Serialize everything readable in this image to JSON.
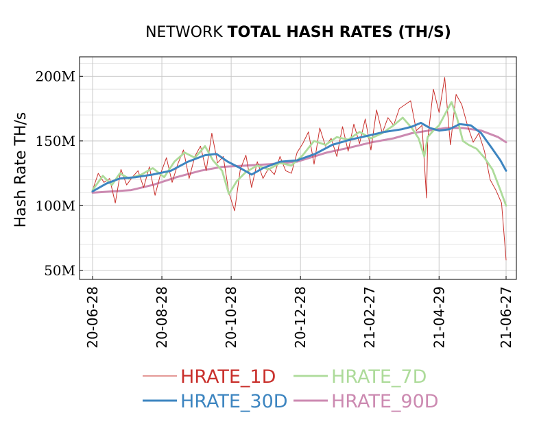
{
  "chart_data": {
    "type": "line",
    "title": {
      "prefix": "NETWORK ",
      "bold": "TOTAL HASH RATES (TH/S)"
    },
    "ylabel": "Hash Rate TH/s",
    "xlabel": "",
    "x_range": [
      "2020-06-28",
      "2021-06-27"
    ],
    "y_range": [
      43000000,
      215000000
    ],
    "y_ticks": [
      {
        "value": 50000000,
        "label": "50M"
      },
      {
        "value": 100000000,
        "label": "100M"
      },
      {
        "value": 150000000,
        "label": "150M"
      },
      {
        "value": 200000000,
        "label": "200M"
      }
    ],
    "x_ticks": [
      {
        "date": "2020-06-28",
        "label": "20-06-28"
      },
      {
        "date": "2020-08-28",
        "label": "20-08-28"
      },
      {
        "date": "2020-10-28",
        "label": "20-10-28"
      },
      {
        "date": "2020-12-28",
        "label": "20-12-28"
      },
      {
        "date": "2021-02-27",
        "label": "21-02-27"
      },
      {
        "date": "2021-04-29",
        "label": "21-04-29"
      },
      {
        "date": "2021-06-27",
        "label": "21-06-27"
      }
    ],
    "grid": true,
    "minor_grid": true,
    "legend_position": "bottom",
    "series": [
      {
        "name": "HRATE_1D",
        "color": "#c9302c",
        "x": [
          "2020-06-28",
          "2020-07-03",
          "2020-07-08",
          "2020-07-13",
          "2020-07-18",
          "2020-07-23",
          "2020-07-28",
          "2020-08-02",
          "2020-08-07",
          "2020-08-12",
          "2020-08-17",
          "2020-08-22",
          "2020-08-27",
          "2020-09-01",
          "2020-09-06",
          "2020-09-11",
          "2020-09-16",
          "2020-09-21",
          "2020-09-26",
          "2020-10-01",
          "2020-10-06",
          "2020-10-11",
          "2020-10-16",
          "2020-10-21",
          "2020-10-26",
          "2020-10-31",
          "2020-11-05",
          "2020-11-10",
          "2020-11-15",
          "2020-11-20",
          "2020-11-25",
          "2020-11-30",
          "2020-12-05",
          "2020-12-10",
          "2020-12-15",
          "2020-12-20",
          "2020-12-25",
          "2020-12-30",
          "2021-01-04",
          "2021-01-09",
          "2021-01-14",
          "2021-01-19",
          "2021-01-24",
          "2021-01-29",
          "2021-02-03",
          "2021-02-08",
          "2021-02-13",
          "2021-02-18",
          "2021-02-23",
          "2021-02-28",
          "2021-03-05",
          "2021-03-10",
          "2021-03-15",
          "2021-03-20",
          "2021-03-25",
          "2021-03-30",
          "2021-04-04",
          "2021-04-09",
          "2021-04-14",
          "2021-04-18",
          "2021-04-19",
          "2021-04-24",
          "2021-04-29",
          "2021-05-04",
          "2021-05-09",
          "2021-05-14",
          "2021-05-19",
          "2021-05-24",
          "2021-05-29",
          "2021-06-03",
          "2021-06-08",
          "2021-06-13",
          "2021-06-18",
          "2021-06-23",
          "2021-06-27"
        ],
        "values": [
          112,
          125,
          118,
          121,
          102,
          128,
          116,
          122,
          127,
          114,
          130,
          108,
          125,
          137,
          118,
          132,
          143,
          121,
          138,
          146,
          127,
          156,
          133,
          138,
          110,
          96,
          128,
          139,
          114,
          134,
          121,
          129,
          124,
          138,
          127,
          125,
          141,
          148,
          157,
          132,
          160,
          146,
          152,
          138,
          161,
          142,
          163,
          148,
          167,
          143,
          174,
          156,
          168,
          162,
          175,
          178,
          181,
          158,
          162,
          106,
          151,
          190,
          172,
          199,
          147,
          186,
          178,
          162,
          149,
          156,
          142,
          120,
          112,
          102,
          58
        ]
      },
      {
        "name": "HRATE_7D",
        "color": "#addb9a",
        "x": [
          "2020-06-28",
          "2020-07-07",
          "2020-07-15",
          "2020-07-22",
          "2020-07-30",
          "2020-08-10",
          "2020-08-20",
          "2020-08-30",
          "2020-09-08",
          "2020-09-17",
          "2020-09-26",
          "2020-10-05",
          "2020-10-12",
          "2020-10-20",
          "2020-10-26",
          "2020-11-02",
          "2020-11-10",
          "2020-11-20",
          "2020-11-30",
          "2020-12-10",
          "2020-12-20",
          "2020-12-30",
          "2021-01-09",
          "2021-01-19",
          "2021-01-29",
          "2021-02-08",
          "2021-02-18",
          "2021-02-28",
          "2021-03-10",
          "2021-03-20",
          "2021-03-28",
          "2021-04-05",
          "2021-04-11",
          "2021-04-16",
          "2021-04-19",
          "2021-04-24",
          "2021-04-29",
          "2021-05-05",
          "2021-05-10",
          "2021-05-15",
          "2021-05-20",
          "2021-05-25",
          "2021-06-01",
          "2021-06-08",
          "2021-06-15",
          "2021-06-22",
          "2021-06-27"
        ],
        "values": [
          112,
          123,
          116,
          125,
          121,
          124,
          129,
          122,
          134,
          141,
          137,
          146,
          135,
          127,
          109,
          119,
          126,
          131,
          128,
          133,
          131,
          139,
          150,
          147,
          153,
          151,
          157,
          152,
          156,
          162,
          168,
          160,
          152,
          138,
          153,
          158,
          162,
          172,
          180,
          167,
          150,
          147,
          144,
          137,
          128,
          112,
          100
        ]
      },
      {
        "name": "HRATE_30D",
        "color": "#3d85c0",
        "x": [
          "2020-06-28",
          "2020-07-10",
          "2020-07-22",
          "2020-08-05",
          "2020-08-20",
          "2020-09-05",
          "2020-09-20",
          "2020-10-05",
          "2020-10-15",
          "2020-10-25",
          "2020-11-05",
          "2020-11-15",
          "2020-11-25",
          "2020-12-10",
          "2020-12-25",
          "2021-01-10",
          "2021-01-25",
          "2021-02-10",
          "2021-02-25",
          "2021-03-12",
          "2021-03-27",
          "2021-04-05",
          "2021-04-13",
          "2021-04-21",
          "2021-04-29",
          "2021-05-08",
          "2021-05-17",
          "2021-05-27",
          "2021-06-05",
          "2021-06-14",
          "2021-06-22",
          "2021-06-27"
        ],
        "values": [
          111,
          117,
          121,
          122,
          124,
          127,
          134,
          139,
          140,
          134,
          129,
          124,
          129,
          134,
          135,
          140,
          147,
          151,
          154,
          157,
          159,
          161,
          164,
          160,
          158,
          159,
          163,
          162,
          156,
          145,
          135,
          127
        ]
      },
      {
        "name": "HRATE_90D",
        "color": "#cc8ab1",
        "x": [
          "2020-06-28",
          "2020-07-15",
          "2020-08-01",
          "2020-08-20",
          "2020-09-10",
          "2020-10-01",
          "2020-10-20",
          "2020-11-10",
          "2020-12-01",
          "2020-12-25",
          "2021-01-20",
          "2021-02-10",
          "2021-03-01",
          "2021-03-20",
          "2021-04-05",
          "2021-04-20",
          "2021-05-05",
          "2021-05-20",
          "2021-06-05",
          "2021-06-20",
          "2021-06-27"
        ],
        "values": [
          110,
          111,
          112,
          116,
          122,
          127,
          130,
          131,
          132,
          134,
          141,
          145,
          149,
          152,
          156,
          158,
          160,
          160,
          158,
          153,
          149
        ]
      }
    ]
  }
}
